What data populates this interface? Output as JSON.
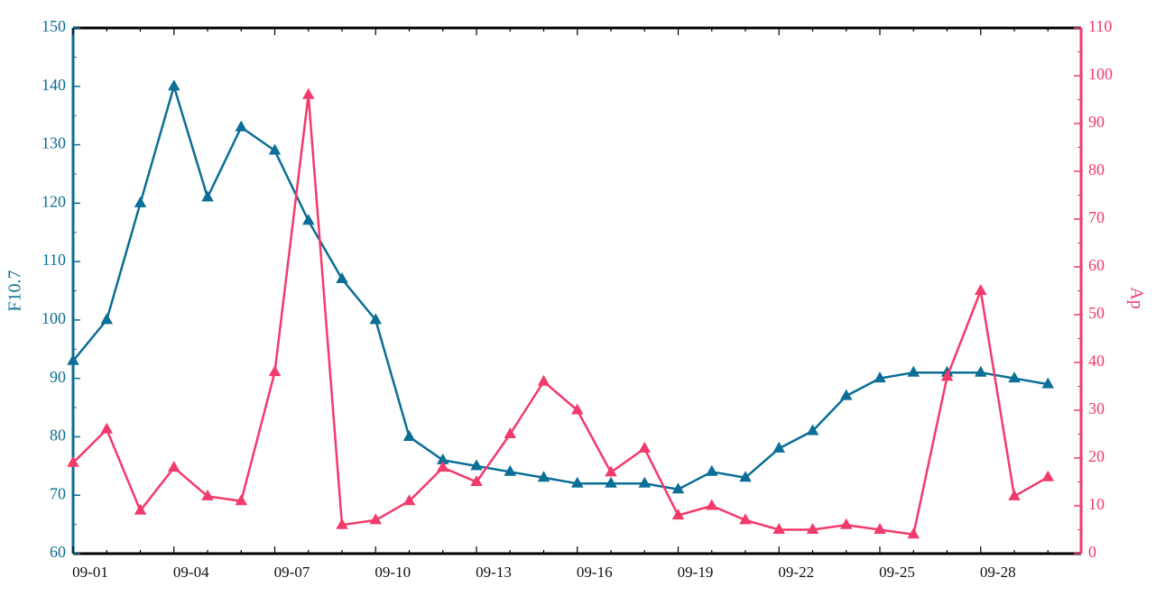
{
  "chart_data": {
    "type": "line",
    "title": "",
    "x": [
      "09-01",
      "09-02",
      "09-03",
      "09-04",
      "09-05",
      "09-06",
      "09-07",
      "09-08",
      "09-09",
      "09-10",
      "09-11",
      "09-12",
      "09-13",
      "09-14",
      "09-15",
      "09-16",
      "09-17",
      "09-18",
      "09-19",
      "09-20",
      "09-21",
      "09-22",
      "09-23",
      "09-24",
      "09-25",
      "09-26",
      "09-27",
      "09-28",
      "09-29",
      "09-30"
    ],
    "x_tick_labels": [
      "09-01",
      "09-04",
      "09-07",
      "09-10",
      "09-13",
      "09-16",
      "09-19",
      "09-22",
      "09-25",
      "09-28"
    ],
    "y_left": {
      "label": "F10.7",
      "lim": [
        60,
        150
      ],
      "ticks": [
        60,
        70,
        80,
        90,
        100,
        110,
        120,
        130,
        140,
        150
      ],
      "color": "#0a6e96"
    },
    "y_right": {
      "label": "Ap",
      "lim": [
        0,
        110
      ],
      "ticks": [
        0,
        10,
        20,
        30,
        40,
        50,
        60,
        70,
        80,
        90,
        100,
        110
      ],
      "color": "#f23a6b"
    },
    "series": [
      {
        "name": "F10.7",
        "axis": "left",
        "color": "#0a6e96",
        "marker": "triangle",
        "x_offsets": [
          0,
          1,
          2,
          3,
          4,
          5,
          6,
          7,
          8,
          9,
          10,
          11,
          12,
          13,
          14,
          15,
          16,
          17,
          18,
          19,
          20,
          21,
          22,
          23,
          24,
          25,
          26,
          27,
          28,
          29
        ],
        "values": [
          93,
          100,
          120,
          140,
          121,
          133,
          129,
          117,
          107,
          100,
          80,
          76,
          75,
          74,
          73,
          72,
          72,
          72,
          71,
          74,
          73,
          78,
          81,
          87,
          90,
          91,
          91,
          91,
          90,
          89
        ]
      },
      {
        "name": "Ap",
        "axis": "right",
        "color": "#f23a6b",
        "marker": "triangle",
        "values": [
          19,
          26,
          9,
          18,
          12,
          11,
          38,
          96,
          6,
          7,
          11,
          18,
          15,
          25,
          36,
          30,
          17,
          22,
          8,
          10,
          7,
          5,
          5,
          6,
          5,
          4,
          37,
          55,
          12,
          16
        ]
      }
    ],
    "grid": false,
    "legend": "none"
  }
}
